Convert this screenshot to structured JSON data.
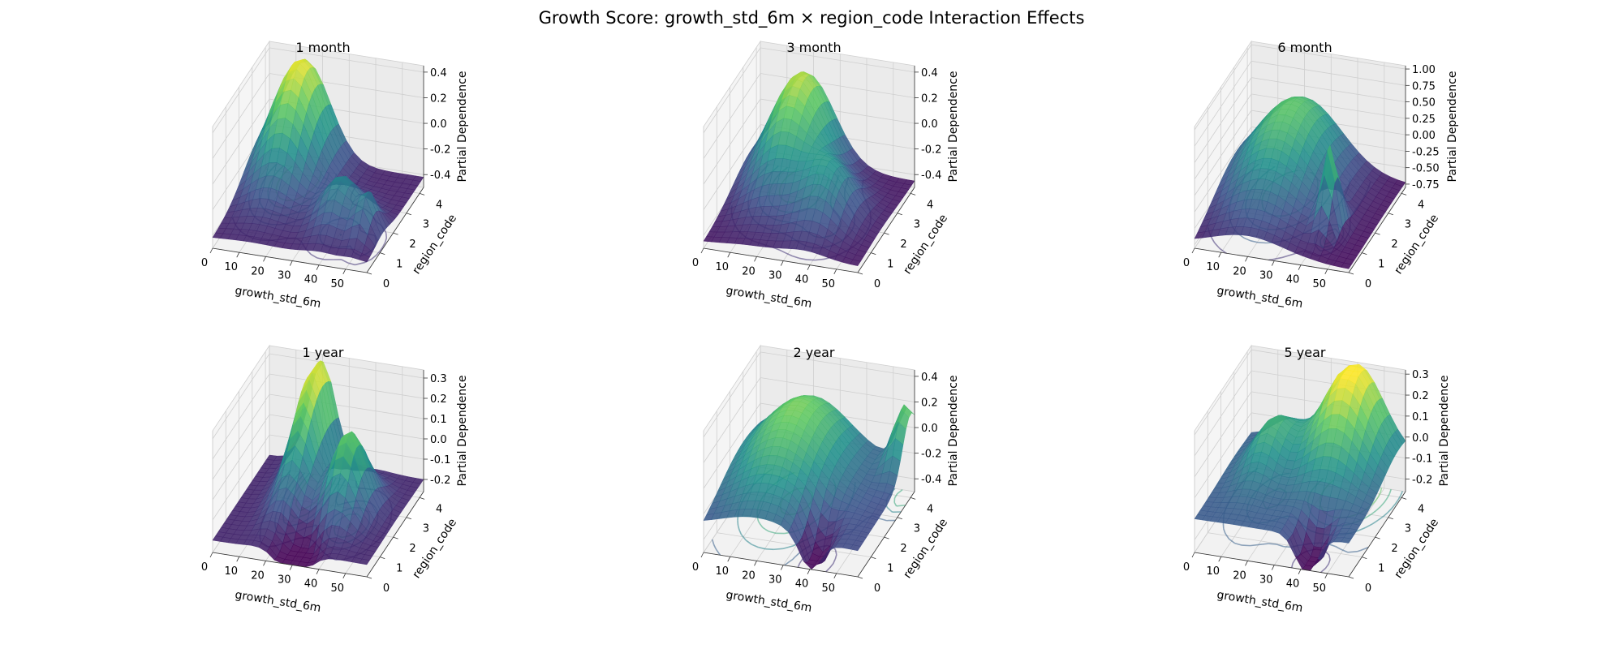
{
  "figure_title": "Growth Score: growth_std_6m × region_code Interaction Effects",
  "chart_data": [
    {
      "type": "surface3d",
      "title": "1 month",
      "xlabel": "growth_std_6m",
      "ylabel": "region_code",
      "zlabel": "Partial Dependence",
      "x_ticks": [
        "0",
        "10",
        "20",
        "30",
        "40",
        "50"
      ],
      "y_ticks": [
        "0",
        "1",
        "2",
        "3",
        "4"
      ],
      "z_ticks": [
        "-0.4",
        "-0.2",
        "0.0",
        "0.2",
        "0.4"
      ],
      "xlim": [
        0,
        58
      ],
      "ylim": [
        0,
        4.3
      ],
      "zlim": [
        -0.5,
        0.45
      ],
      "peaks": [
        {
          "x": 14,
          "y": 3.7,
          "amp": 0.85,
          "sx": 9,
          "sy": 1.3
        },
        {
          "x": 40,
          "y": 1.6,
          "amp": 0.35,
          "sx": 6,
          "sy": 0.7
        },
        {
          "x": 52,
          "y": 1.2,
          "amp": 0.3,
          "sx": 3,
          "sy": 0.5
        }
      ],
      "base": -0.42
    },
    {
      "type": "surface3d",
      "title": "3 month",
      "xlabel": "growth_std_6m",
      "ylabel": "region_code",
      "zlabel": "Partial Dependence",
      "x_ticks": [
        "0",
        "10",
        "20",
        "30",
        "40",
        "50"
      ],
      "y_ticks": [
        "0",
        "1",
        "2",
        "3",
        "4"
      ],
      "z_ticks": [
        "-0.4",
        "-0.2",
        "0.0",
        "0.2",
        "0.4"
      ],
      "xlim": [
        0,
        58
      ],
      "ylim": [
        0,
        4.3
      ],
      "zlim": [
        -0.5,
        0.45
      ],
      "peaks": [
        {
          "x": 18,
          "y": 3.6,
          "amp": 0.8,
          "sx": 10,
          "sy": 1.4
        },
        {
          "x": 38,
          "y": 1.8,
          "amp": 0.4,
          "sx": 8,
          "sy": 0.9
        }
      ],
      "base": -0.45
    },
    {
      "type": "surface3d",
      "title": "6 month",
      "xlabel": "growth_std_6m",
      "ylabel": "region_code",
      "zlabel": "Partial Dependence",
      "x_ticks": [
        "0",
        "10",
        "20",
        "30",
        "40",
        "50"
      ],
      "y_ticks": [
        "0",
        "1",
        "2",
        "3",
        "4"
      ],
      "z_ticks": [
        "-0.75",
        "-0.50",
        "-0.25",
        "0.00",
        "0.25",
        "0.50",
        "0.75",
        "1.00"
      ],
      "xlim": [
        0,
        58
      ],
      "ylim": [
        0,
        4.3
      ],
      "zlim": [
        -0.8,
        1.05
      ],
      "peaks": [
        {
          "x": 20,
          "y": 3.2,
          "amp": 1.3,
          "sx": 14,
          "sy": 1.8
        },
        {
          "x": 44,
          "y": 1.4,
          "amp": 1.2,
          "sx": 2.5,
          "sy": 0.4
        }
      ],
      "base": -0.75
    },
    {
      "type": "surface3d",
      "title": "1 year",
      "xlabel": "growth_std_6m",
      "ylabel": "region_code",
      "zlabel": "Partial Dependence",
      "x_ticks": [
        "0",
        "10",
        "20",
        "30",
        "40",
        "50"
      ],
      "y_ticks": [
        "0",
        "1",
        "2",
        "3",
        "4"
      ],
      "z_ticks": [
        "-0.2",
        "-0.1",
        "0.0",
        "0.1",
        "0.2",
        "0.3"
      ],
      "xlim": [
        0,
        58
      ],
      "ylim": [
        0,
        4.3
      ],
      "zlim": [
        -0.26,
        0.34
      ],
      "peaks": [
        {
          "x": 20,
          "y": 3.7,
          "amp": 0.55,
          "sx": 5,
          "sy": 1.4
        },
        {
          "x": 40,
          "y": 2.2,
          "amp": 0.4,
          "sx": 6,
          "sy": 0.8
        },
        {
          "x": 30,
          "y": 0.4,
          "amp": -0.15,
          "sx": 6,
          "sy": 0.6
        }
      ],
      "base": -0.2
    },
    {
      "type": "surface3d",
      "title": "2 year",
      "xlabel": "growth_std_6m",
      "ylabel": "region_code",
      "zlabel": "Partial Dependence",
      "x_ticks": [
        "0",
        "10",
        "20",
        "30",
        "40",
        "50"
      ],
      "y_ticks": [
        "0",
        "1",
        "2",
        "3",
        "4"
      ],
      "z_ticks": [
        "-0.4",
        "-0.2",
        "0.0",
        "0.2",
        "0.4"
      ],
      "xlim": [
        0,
        58
      ],
      "ylim": [
        0,
        4.3
      ],
      "zlim": [
        -0.5,
        0.45
      ],
      "peaks": [
        {
          "x": 20,
          "y": 3.0,
          "amp": 0.55,
          "sx": 14,
          "sy": 1.8
        },
        {
          "x": 56,
          "y": 4.0,
          "amp": 0.5,
          "sx": 4,
          "sy": 0.6
        },
        {
          "x": 40,
          "y": 0.5,
          "amp": -0.35,
          "sx": 4,
          "sy": 0.6
        }
      ],
      "base": -0.3
    },
    {
      "type": "surface3d",
      "title": "5 year",
      "xlabel": "growth_std_6m",
      "ylabel": "region_code",
      "zlabel": "Partial Dependence",
      "x_ticks": [
        "0",
        "10",
        "20",
        "30",
        "40",
        "50"
      ],
      "y_ticks": [
        "0",
        "1",
        "2",
        "3",
        "4"
      ],
      "z_ticks": [
        "-0.2",
        "-0.1",
        "0.0",
        "0.1",
        "0.2",
        "0.3"
      ],
      "xlim": [
        0,
        58
      ],
      "ylim": [
        0,
        4.3
      ],
      "zlim": [
        -0.26,
        0.32
      ],
      "peaks": [
        {
          "x": 40,
          "y": 3.8,
          "amp": 0.45,
          "sx": 10,
          "sy": 1.2
        },
        {
          "x": 14,
          "y": 3.0,
          "amp": 0.2,
          "sx": 6,
          "sy": 1.0
        },
        {
          "x": 42,
          "y": 0.4,
          "amp": -0.25,
          "sx": 4,
          "sy": 0.5
        }
      ],
      "base": -0.1
    }
  ]
}
